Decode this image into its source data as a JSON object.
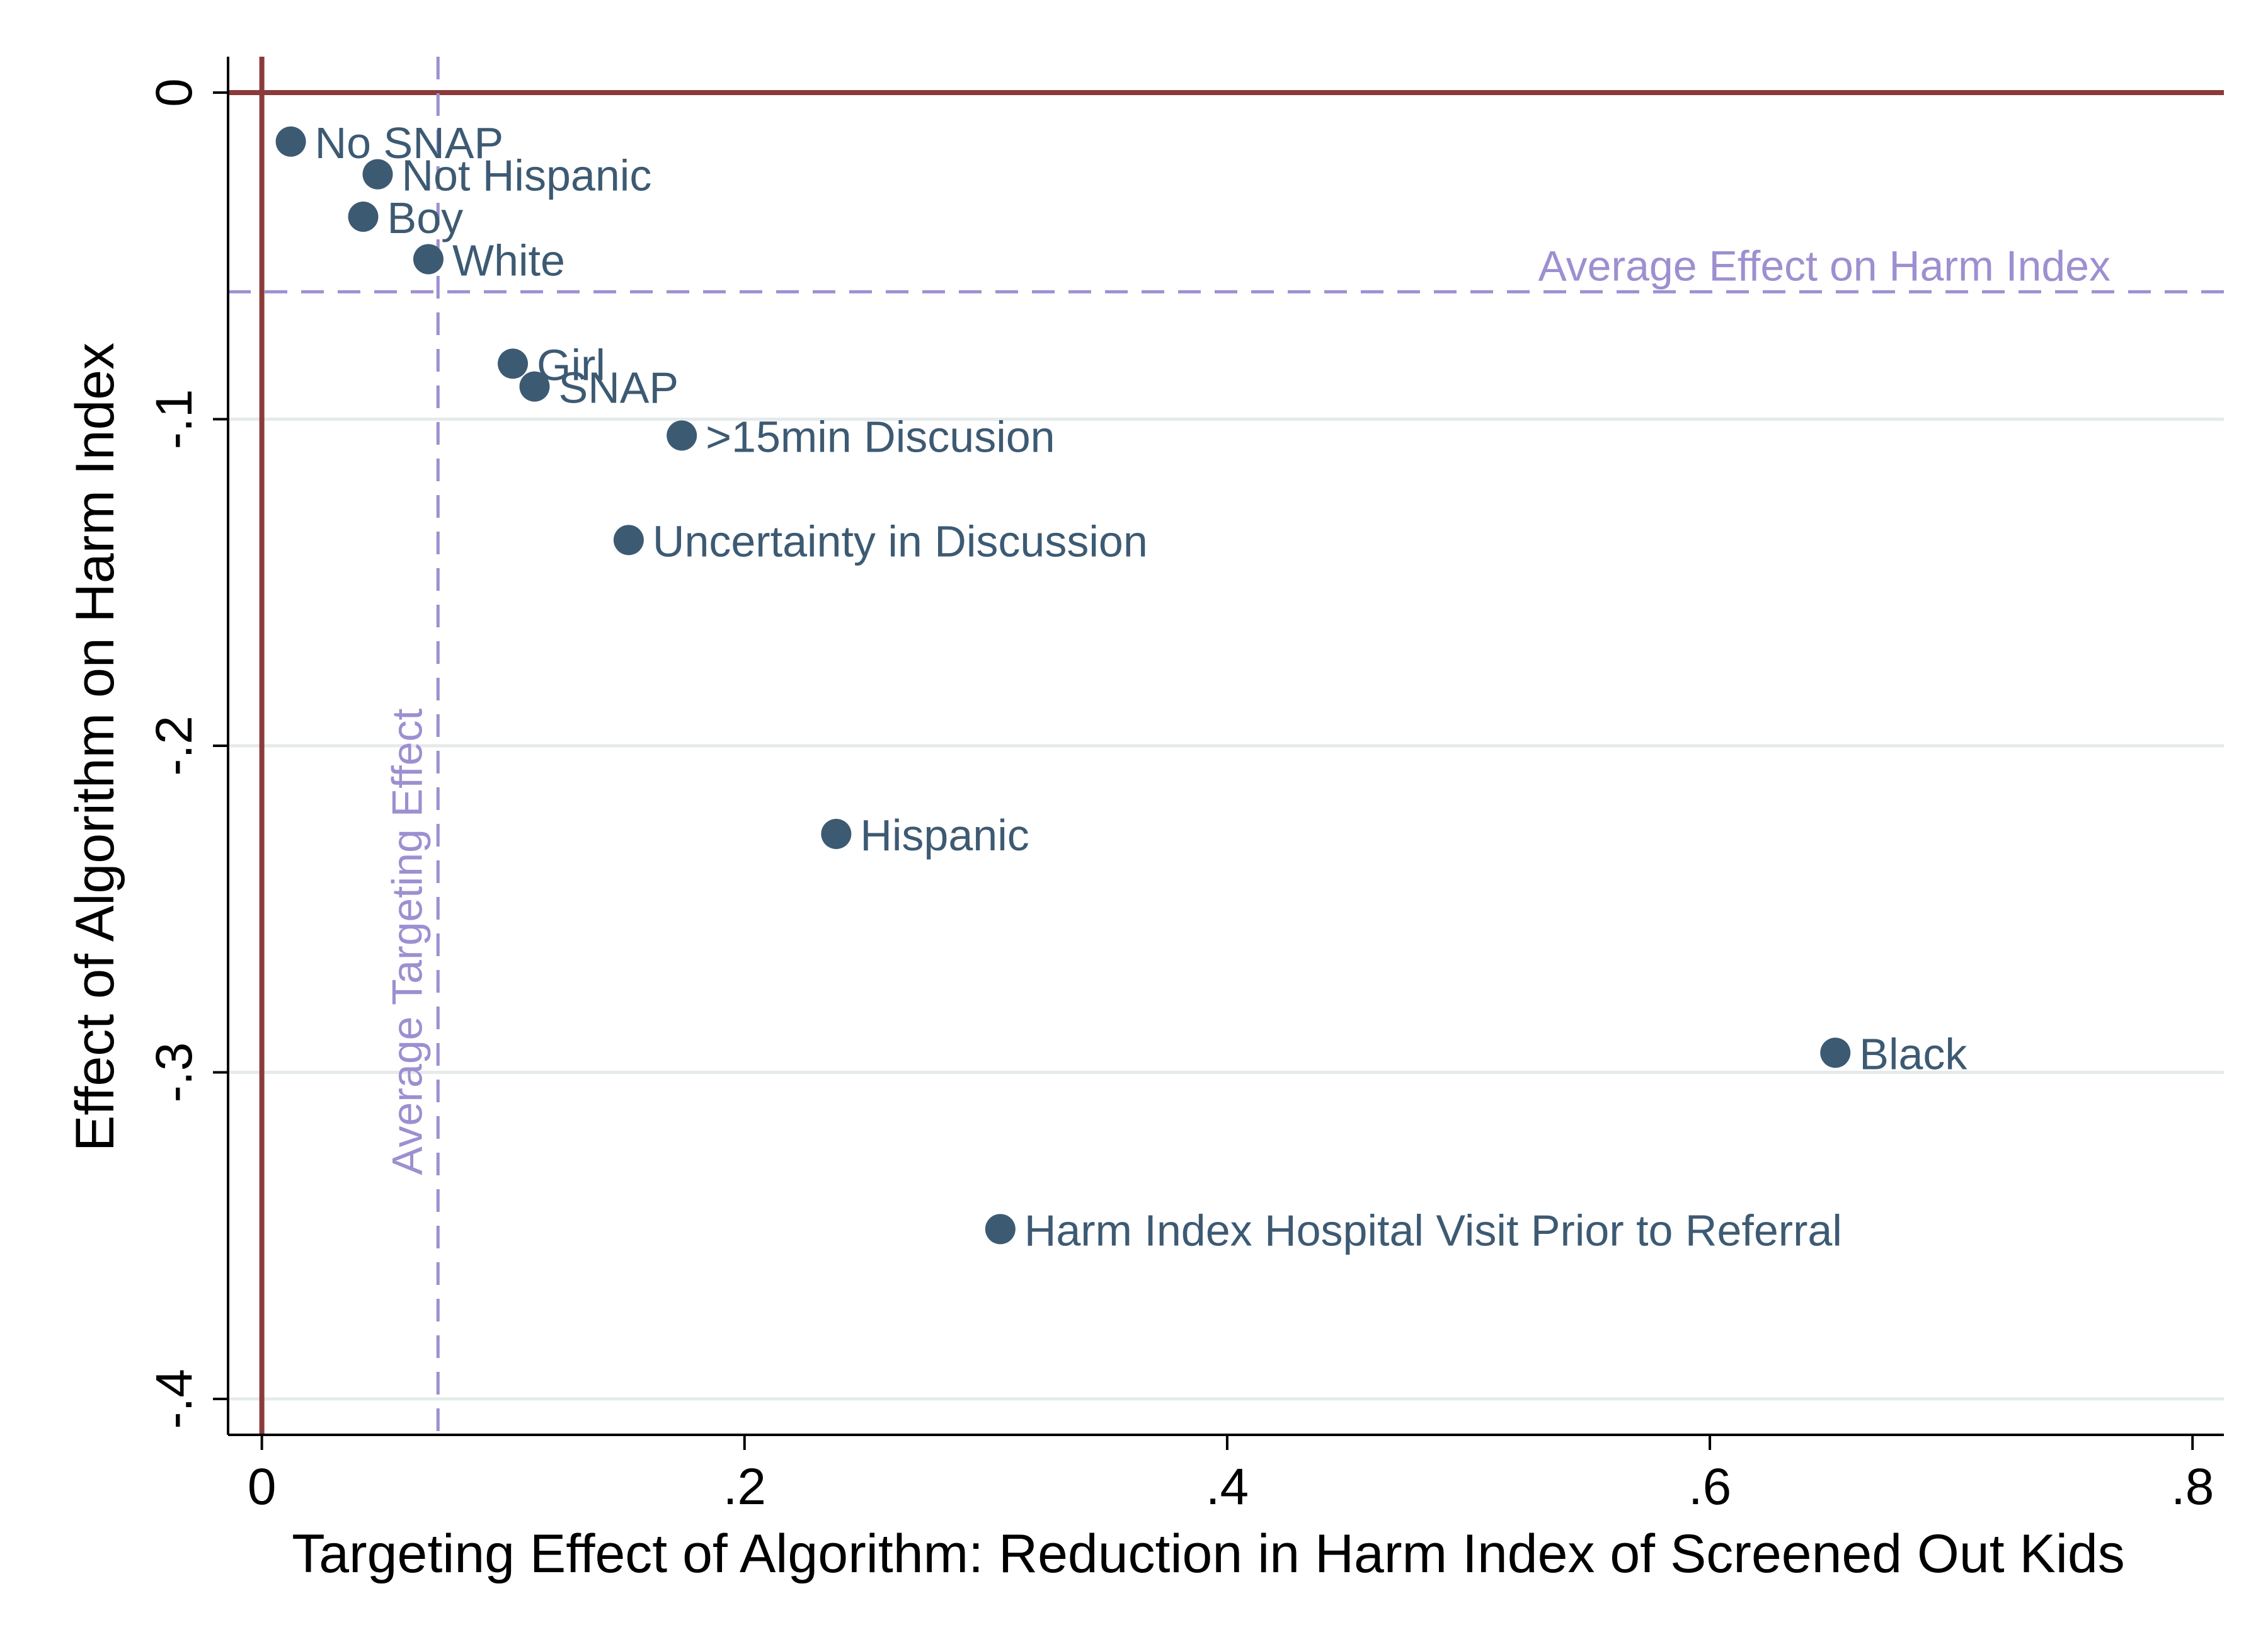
{
  "chart_data": {
    "type": "scatter",
    "title": "",
    "xlabel": "Targeting Effect of Algorithm: Reduction in Harm Index of Screened Out Kids",
    "ylabel": "Effect of Algorithm on Harm Index",
    "xlim": [
      -0.014,
      0.813
    ],
    "ylim": [
      -0.411,
      0.011
    ],
    "xticks": [
      0,
      0.2,
      0.4,
      0.6,
      0.8
    ],
    "xtick_labels": [
      "0",
      ".2",
      ".4",
      ".6",
      ".8"
    ],
    "yticks": [
      0,
      -0.1,
      -0.2,
      -0.3,
      -0.4
    ],
    "ytick_labels": [
      "0",
      "-.1",
      "-.2",
      "-.3",
      "-.4"
    ],
    "grid": true,
    "points": [
      {
        "label": "No SNAP",
        "x": 0.012,
        "y": -0.015
      },
      {
        "label": "Not Hispanic",
        "x": 0.048,
        "y": -0.025
      },
      {
        "label": "Boy",
        "x": 0.042,
        "y": -0.038
      },
      {
        "label": "White",
        "x": 0.069,
        "y": -0.051
      },
      {
        "label": "Girl",
        "x": 0.104,
        "y": -0.083
      },
      {
        "label": "SNAP",
        "x": 0.113,
        "y": -0.09
      },
      {
        "label": ">15min Discusion",
        "x": 0.174,
        "y": -0.105
      },
      {
        "label": "Uncertainty in Discussion",
        "x": 0.152,
        "y": -0.137
      },
      {
        "label": "Hispanic",
        "x": 0.238,
        "y": -0.227
      },
      {
        "label": "Black",
        "x": 0.652,
        "y": -0.294
      },
      {
        "label": "Harm Index Hospital Visit Prior to Referral",
        "x": 0.306,
        "y": -0.348
      }
    ],
    "reference_lines": [
      {
        "orientation": "horizontal",
        "value": 0,
        "style": "solid",
        "label": ""
      },
      {
        "orientation": "vertical",
        "value": 0,
        "style": "solid",
        "label": ""
      },
      {
        "orientation": "horizontal",
        "value": -0.061,
        "style": "dashed",
        "label": "Average Effect on Harm Index"
      },
      {
        "orientation": "vertical",
        "value": 0.073,
        "style": "dashed",
        "label": "Average Targeting Effect"
      }
    ],
    "colors": {
      "points": "#3d5a73",
      "zero_lines": "#8b3a3a",
      "average_lines": "#9d8fd0",
      "grid": "#e4ebea",
      "axis": "#000000"
    }
  }
}
